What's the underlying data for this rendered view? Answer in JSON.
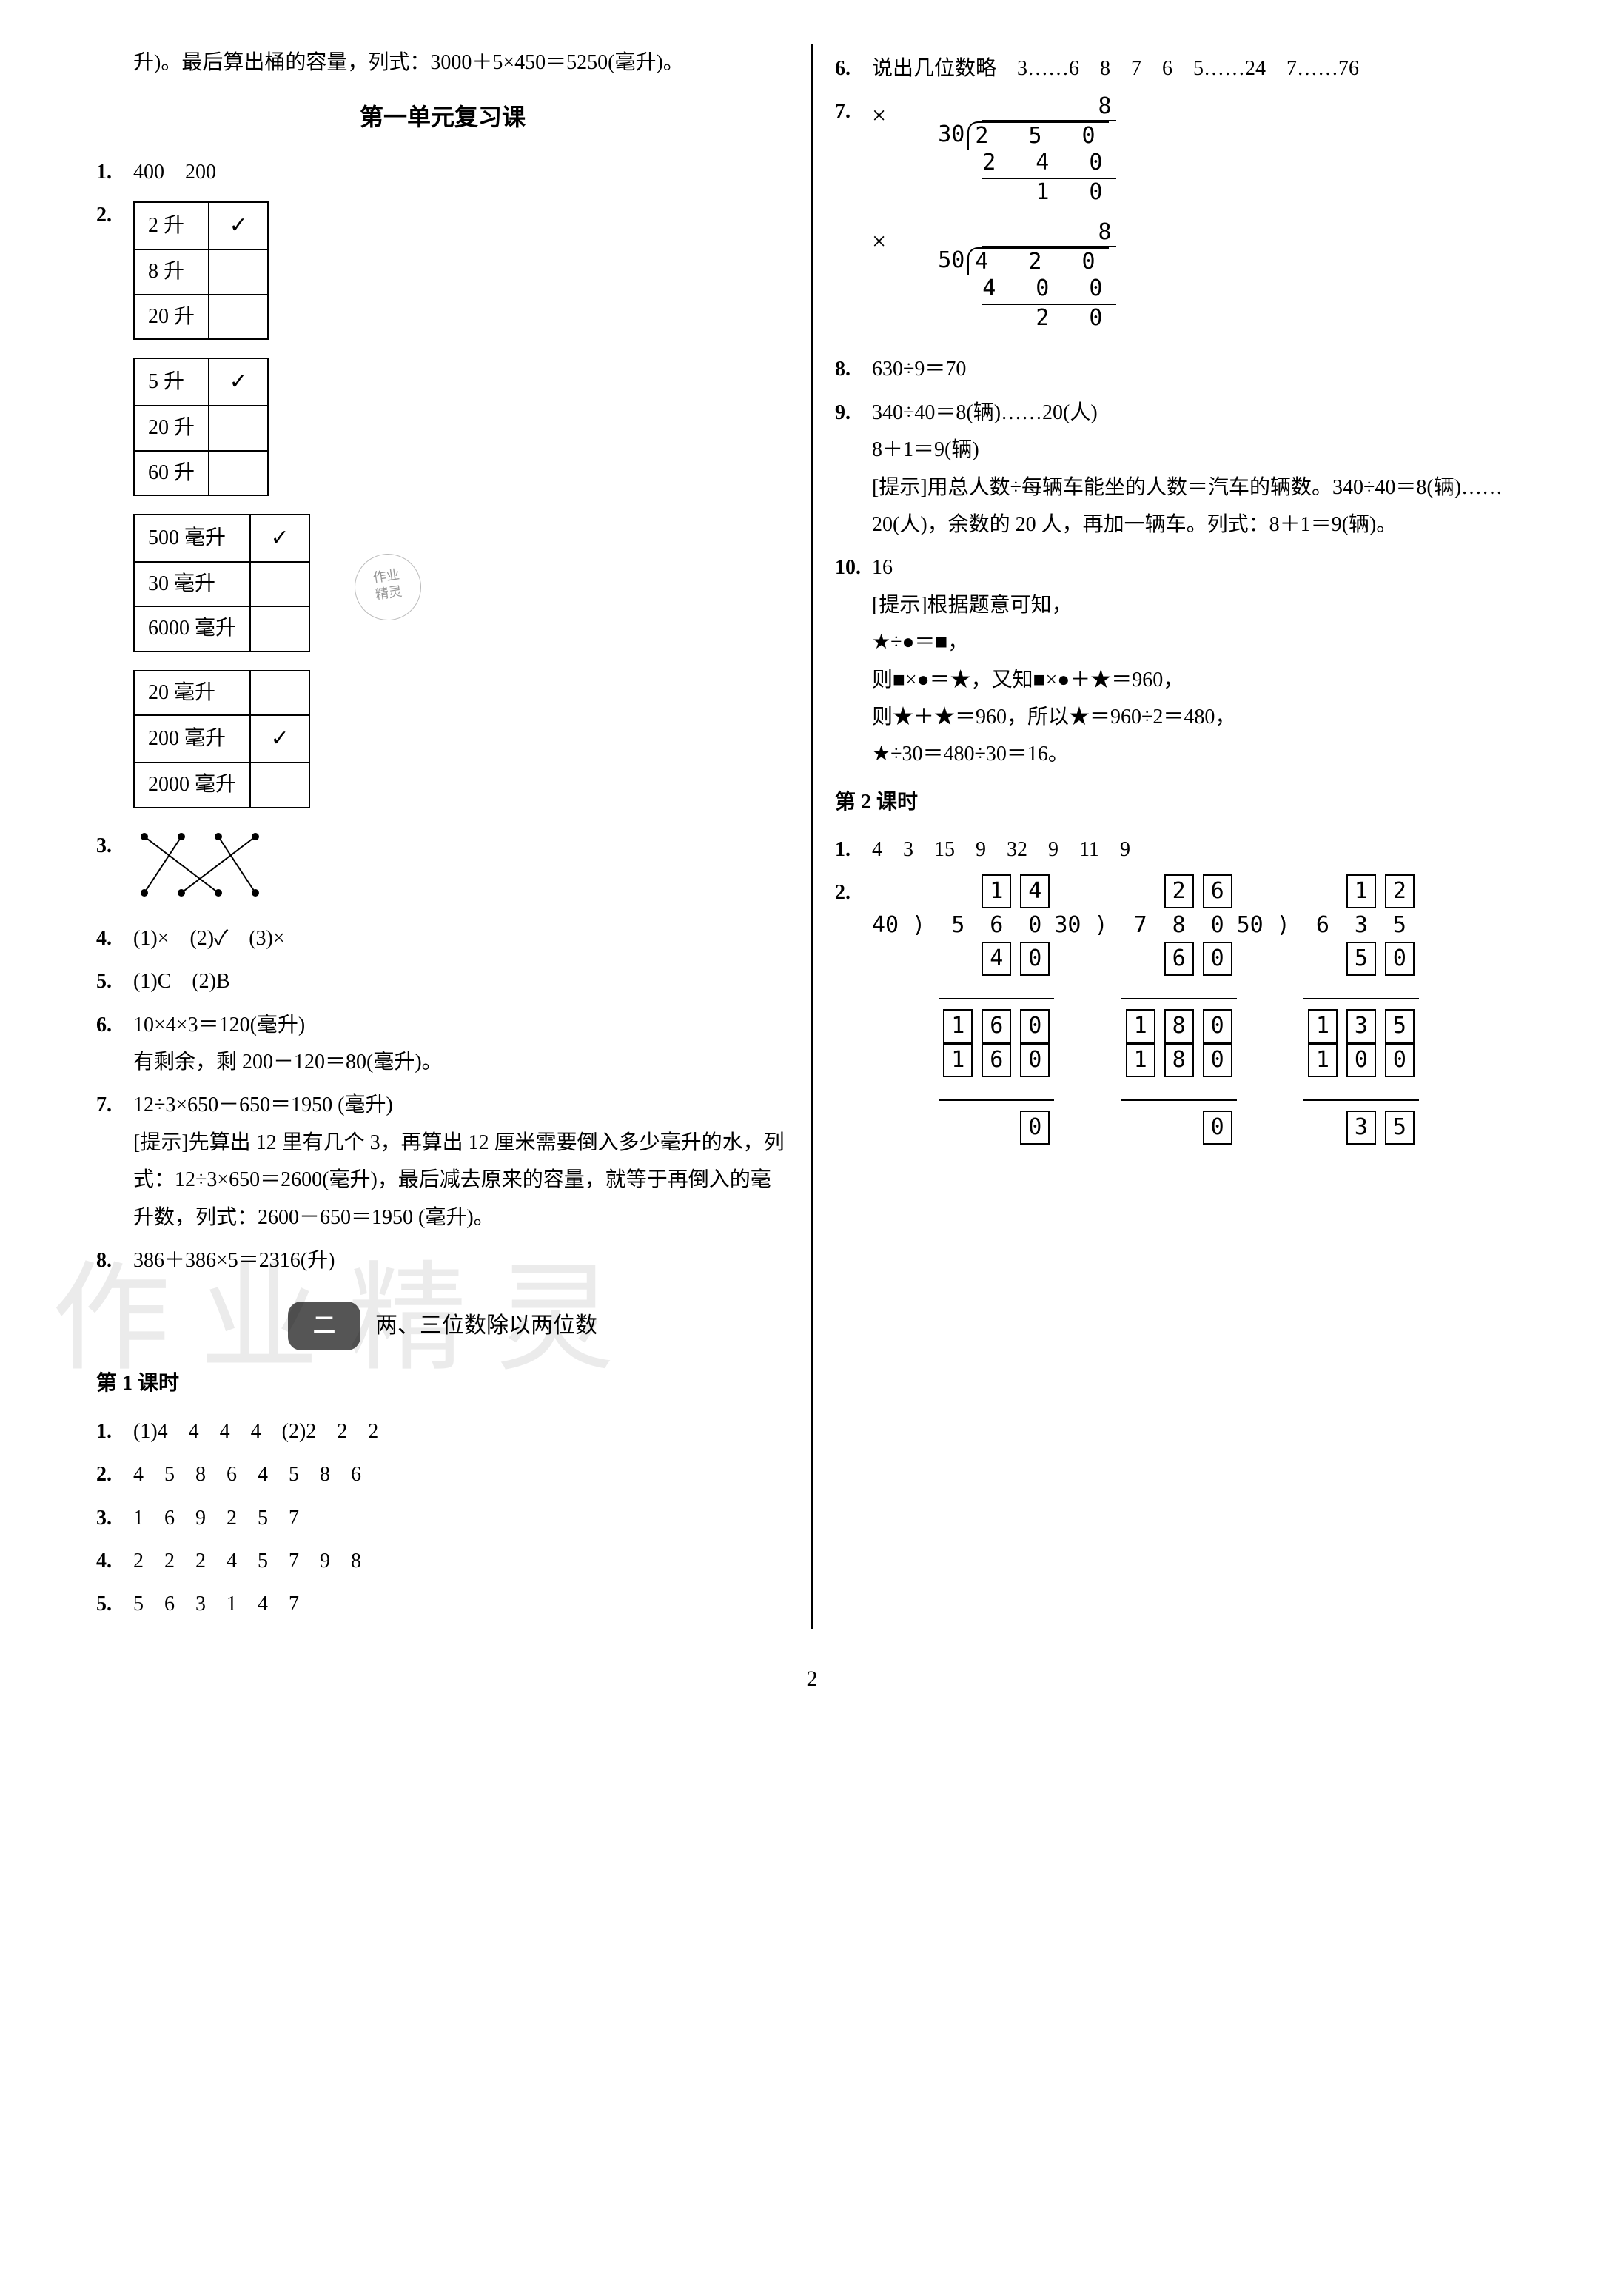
{
  "left": {
    "intro": "升)。最后算出桶的容量，列式：3000＋5×450＝5250(毫升)。",
    "section_title": "第一单元复习课",
    "q1": {
      "num": "1.",
      "text": "400　200"
    },
    "q2": {
      "num": "2.",
      "tables": [
        {
          "rows": [
            [
              "2 升",
              true
            ],
            [
              "8 升",
              false
            ],
            [
              "20 升",
              false
            ]
          ]
        },
        {
          "rows": [
            [
              "5 升",
              true
            ],
            [
              "20 升",
              false
            ],
            [
              "60 升",
              false
            ]
          ]
        },
        {
          "rows": [
            [
              "500 毫升",
              true
            ],
            [
              "30 毫升",
              false
            ],
            [
              "6000 毫升",
              false
            ]
          ]
        },
        {
          "rows": [
            [
              "20 毫升",
              false
            ],
            [
              "200 毫升",
              true
            ],
            [
              "2000 毫升",
              false
            ]
          ]
        }
      ],
      "seal_lines": [
        "作业",
        "精灵"
      ]
    },
    "q3": {
      "num": "3."
    },
    "q4": {
      "num": "4.",
      "text": "(1)×　(2)✓　(3)×"
    },
    "q5": {
      "num": "5.",
      "text": "(1)C　(2)B"
    },
    "q6": {
      "num": "6.",
      "lines": [
        "10×4×3＝120(毫升)",
        "有剩余，剩 200－120＝80(毫升)。"
      ]
    },
    "q7": {
      "num": "7.",
      "lines": [
        "12÷3×650－650＝1950 (毫升)",
        "[提示]先算出 12 里有几个 3，再算出 12 厘米需要倒入多少毫升的水，列式：12÷3×650＝2600(毫升)，最后减去原来的容量，就等于再倒入的毫升数，列式：2600－650＝1950 (毫升)。"
      ]
    },
    "q8": {
      "num": "8.",
      "text": "386＋386×5＝2316(升)"
    },
    "unit2": {
      "badge": "二",
      "title": "两、三位数除以两位数"
    },
    "lesson1": {
      "head": "第 1 课时",
      "items": [
        {
          "num": "1.",
          "text": "(1)4　4　4　4　(2)2　2　2"
        },
        {
          "num": "2.",
          "text": "4　5　8　6　4　5　8　6"
        },
        {
          "num": "3.",
          "text": "1　6　9　2　5　7"
        },
        {
          "num": "4.",
          "text": "2　2　2　4　5　7　9　8"
        },
        {
          "num": "5.",
          "text": "5　6　3　1　4　7"
        }
      ]
    }
  },
  "right": {
    "q6": {
      "num": "6.",
      "text": "说出几位数略　3……6　8　7　6　5……24　7……76"
    },
    "q7": {
      "num": "7.",
      "div1": {
        "mark": "×",
        "divisor": "30",
        "quotient": "8",
        "dividend": "2 5 0",
        "sub": "2 4 0",
        "rem": "1 0"
      },
      "div2": {
        "mark": "×",
        "divisor": "50",
        "quotient": "8",
        "dividend": "4 2 0",
        "sub": "4 0 0",
        "rem": "2 0"
      }
    },
    "q8": {
      "num": "8.",
      "text": "630÷9＝70"
    },
    "q9": {
      "num": "9.",
      "lines": [
        "340÷40＝8(辆)……20(人)",
        "8＋1＝9(辆)",
        "[提示]用总人数÷每辆车能坐的人数＝汽车的辆数。340÷40＝8(辆)……20(人)，余数的 20 人，再加一辆车。列式：8＋1＝9(辆)。"
      ]
    },
    "q10": {
      "num": "10.",
      "lines": [
        "16",
        "[提示]根据题意可知，",
        "★÷●＝■，",
        "则■×●＝★，又知■×●＋★＝960，",
        "则★＋★＝960，所以★＝960÷2＝480，",
        "★÷30＝480÷30＝16。"
      ]
    },
    "lesson2": {
      "head": "第 2 课时",
      "q1": {
        "num": "1.",
        "text": "4　3　15　9　32　9　11　9"
      },
      "q2": {
        "num": "2.",
        "problems": [
          {
            "divisor": "40",
            "dividend": [
              "5",
              "6",
              "0"
            ],
            "quotient": [
              "1",
              "4"
            ],
            "steps": [
              [
                "4",
                "0"
              ],
              [
                "1",
                "6",
                "0"
              ],
              [
                "1",
                "6",
                "0"
              ],
              [
                "0"
              ]
            ]
          },
          {
            "divisor": "30",
            "dividend": [
              "7",
              "8",
              "0"
            ],
            "quotient": [
              "2",
              "6"
            ],
            "steps": [
              [
                "6",
                "0"
              ],
              [
                "1",
                "8",
                "0"
              ],
              [
                "1",
                "8",
                "0"
              ],
              [
                "0"
              ]
            ]
          },
          {
            "divisor": "50",
            "dividend": [
              "6",
              "3",
              "5"
            ],
            "quotient": [
              "1",
              "2"
            ],
            "steps": [
              [
                "5",
                "0"
              ],
              [
                "1",
                "3",
                "5"
              ],
              [
                "1",
                "0",
                "0"
              ],
              [
                "3",
                "5"
              ]
            ]
          }
        ]
      }
    }
  },
  "page_number": "2",
  "colors": {
    "text": "#000000",
    "bg": "#ffffff",
    "border": "#000000",
    "badge_bg": "#555555",
    "watermark": "rgba(0,0,0,0.08)"
  },
  "fonts": {
    "body_family": "SimSun, 宋体, serif",
    "body_size_pt": 21,
    "title_size_pt": 24
  },
  "watermark_text": "作业精灵"
}
